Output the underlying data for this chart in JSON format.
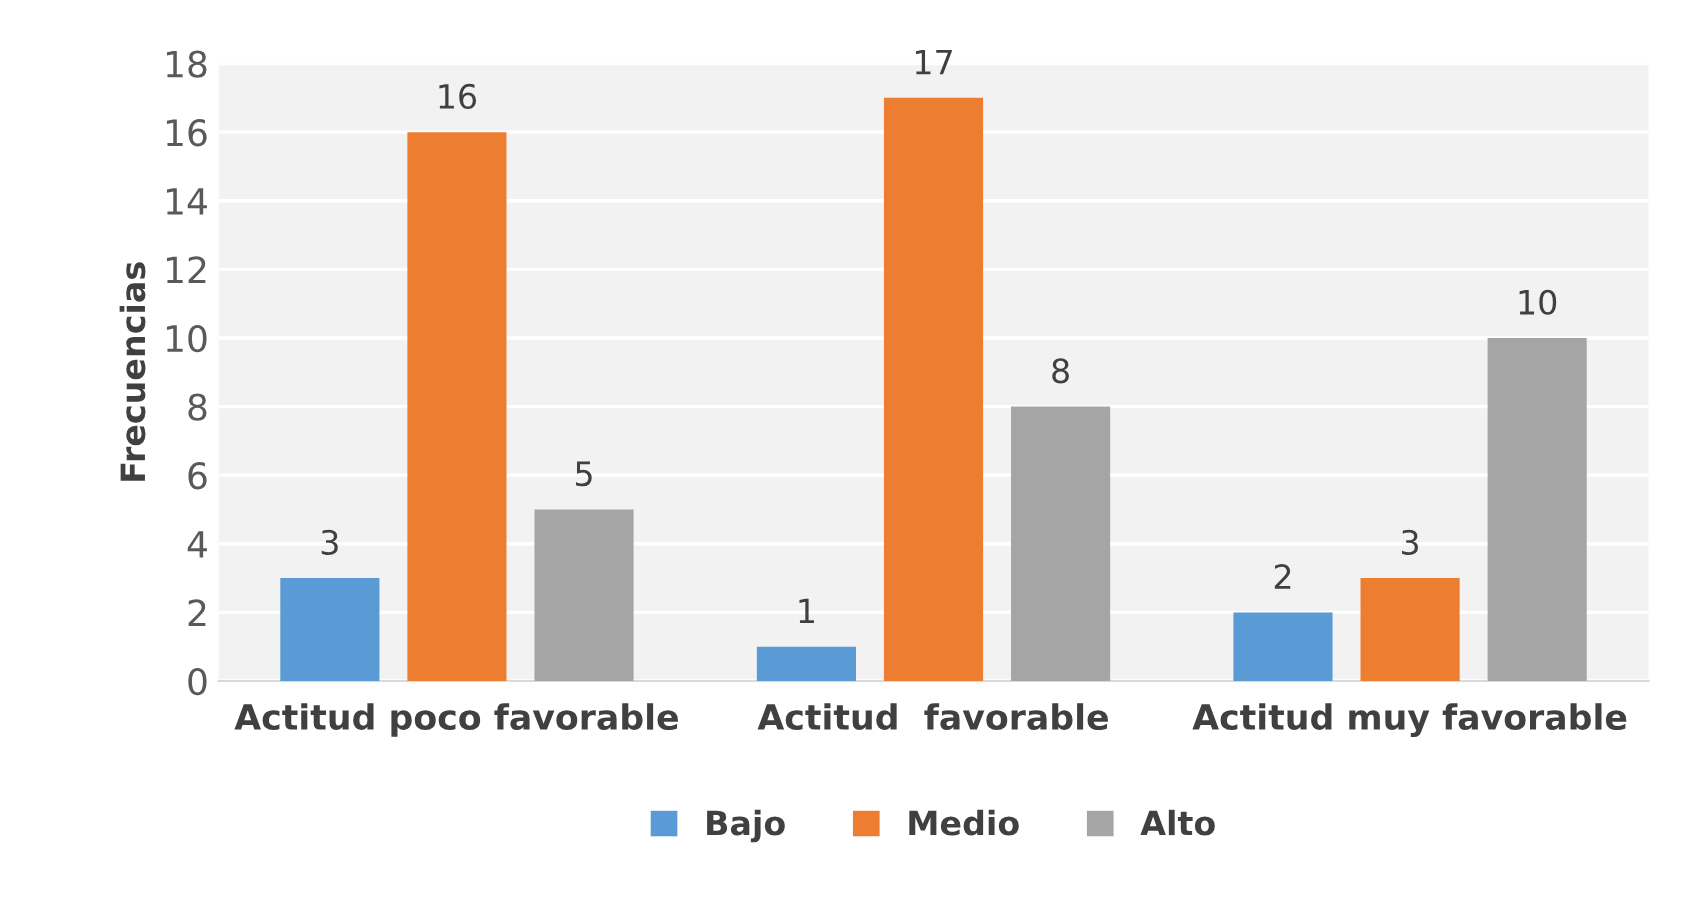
{
  "chart_data": {
    "type": "bar",
    "ylabel": "Frecuencias",
    "categories": [
      "Actitud poco favorable",
      "Actitud  favorable",
      "Actitud muy favorable"
    ],
    "series": [
      {
        "name": "Bajo",
        "color": "#5b9bd5",
        "values": [
          3,
          1,
          2
        ]
      },
      {
        "name": "Medio",
        "color": "#ed7d31",
        "values": [
          16,
          17,
          3
        ]
      },
      {
        "name": "Alto",
        "color": "#a5a5a5",
        "values": [
          5,
          8,
          10
        ]
      }
    ],
    "ylim": [
      0,
      18
    ],
    "yticks": [
      0,
      2,
      4,
      6,
      8,
      10,
      12,
      14,
      16,
      18
    ],
    "grid": "y",
    "legend": "bottom",
    "data_labels": true
  }
}
